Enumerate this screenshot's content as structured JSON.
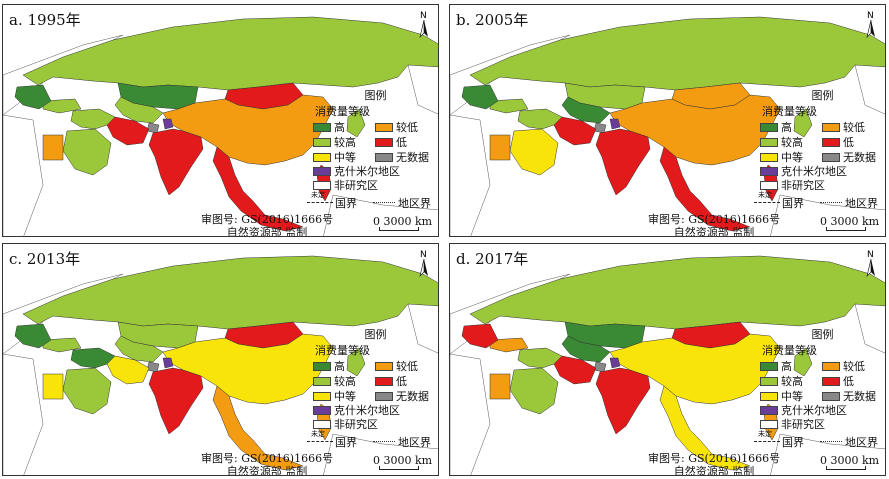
{
  "panels": [
    {
      "id": "a",
      "title": "a. 1995年",
      "colors": {
        "russia": "#9bc83b",
        "central_asia": "#9bc83b",
        "kazakhstan": "#3a8a35",
        "mongolia": "#e31a1c",
        "china": "#f39c12",
        "india": "#e31a1c",
        "sea": "#e31a1c",
        "middle_east": "#9bc83b",
        "iran": "#e31a1c",
        "arabia": "#9bc83b",
        "yemen": "#f39c12",
        "se_europe": "#3a8a35",
        "japan": "#9bc83b",
        "kashmir": "#6a3d9a",
        "nodata": "#888888",
        "philippines": "#e31a1c",
        "turkey": "#9bc83b"
      }
    },
    {
      "id": "b",
      "title": "b. 2005年",
      "colors": {
        "russia": "#9bc83b",
        "central_asia": "#3a8a35",
        "kazakhstan": "#9bc83b",
        "mongolia": "#f39c12",
        "china": "#f39c12",
        "india": "#e31a1c",
        "sea": "#e31a1c",
        "middle_east": "#9bc83b",
        "iran": "#e31a1c",
        "arabia": "#f9e40a",
        "yemen": "#f39c12",
        "se_europe": "#3a8a35",
        "japan": "#9bc83b",
        "kashmir": "#6a3d9a",
        "nodata": "#888888",
        "philippines": "#e31a1c",
        "turkey": "#9bc83b"
      }
    },
    {
      "id": "c",
      "title": "c. 2013年",
      "colors": {
        "russia": "#9bc83b",
        "central_asia": "#9bc83b",
        "kazakhstan": "#9bc83b",
        "mongolia": "#e31a1c",
        "china": "#f9e40a",
        "india": "#e31a1c",
        "sea": "#f39c12",
        "middle_east": "#3a8a35",
        "iran": "#f9e40a",
        "arabia": "#9bc83b",
        "yemen": "#f9e40a",
        "se_europe": "#3a8a35",
        "japan": "#9bc83b",
        "kashmir": "#6a3d9a",
        "nodata": "#888888",
        "philippines": "#f39c12",
        "turkey": "#9bc83b"
      }
    },
    {
      "id": "d",
      "title": "d. 2017年",
      "colors": {
        "russia": "#9bc83b",
        "central_asia": "#3a8a35",
        "kazakhstan": "#3a8a35",
        "mongolia": "#e31a1c",
        "china": "#f9e40a",
        "india": "#e31a1c",
        "sea": "#f9e40a",
        "middle_east": "#9bc83b",
        "iran": "#e31a1c",
        "arabia": "#9bc83b",
        "yemen": "#f39c12",
        "se_europe": "#e31a1c",
        "japan": "#9bc83b",
        "kashmir": "#6a3d9a",
        "nodata": "#888888",
        "philippines": "#f39c12",
        "turkey": "#f39c12"
      }
    }
  ],
  "legend": {
    "title": "图例",
    "subtitle": "消费量等级",
    "items": [
      {
        "label": "高",
        "color": "#3a8a35"
      },
      {
        "label": "较低",
        "color": "#f39c12"
      },
      {
        "label": "较高",
        "color": "#9bc83b"
      },
      {
        "label": "低",
        "color": "#e31a1c"
      },
      {
        "label": "中等",
        "color": "#f9e40a"
      },
      {
        "label": "无数据",
        "color": "#888888"
      }
    ],
    "kashmir": {
      "label": "克什米尔地区",
      "color": "#6a3d9a"
    },
    "non_study": {
      "label": "非研究区",
      "color": "#ffffff"
    }
  },
  "boundaries": {
    "undetermined": "未定",
    "national": "国界",
    "regional": "地区界"
  },
  "scale": {
    "zero": "0",
    "distance": "3000 km"
  },
  "north": "N",
  "approval": {
    "line1": "审图号: GS(2016)1666号",
    "line2": "自然资源部 监制"
  }
}
